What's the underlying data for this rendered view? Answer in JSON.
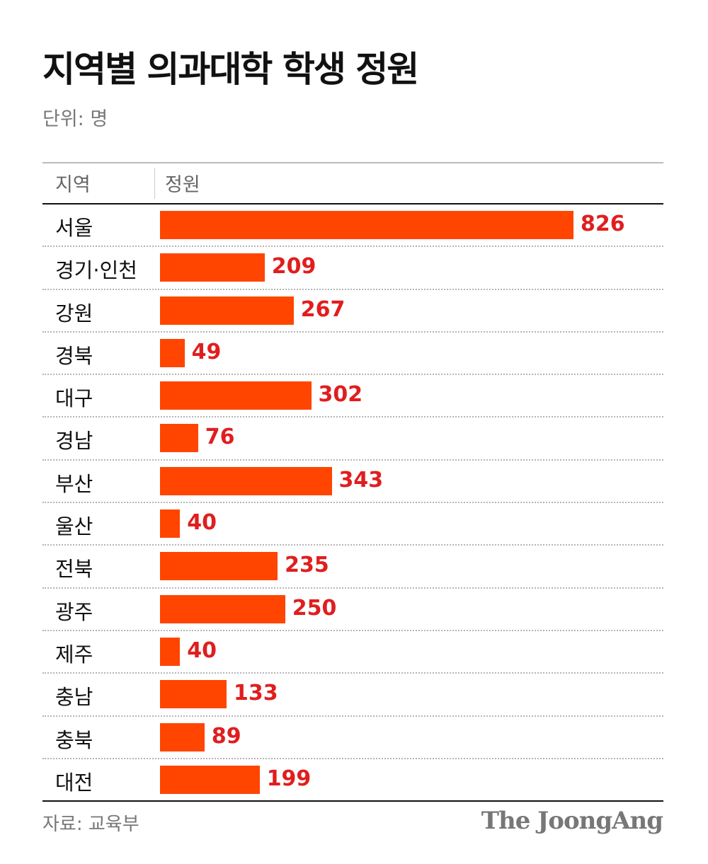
{
  "title": "지역별 의과대학 학생 정원",
  "unit": "단위: 명",
  "header": {
    "region": "지역",
    "value": "정원"
  },
  "colors": {
    "bar": "#ff4500",
    "value_label": "#e01e1e"
  },
  "chart_data": {
    "type": "bar",
    "orientation": "horizontal",
    "title": "지역별 의과대학 학생 정원",
    "categories": [
      "서울",
      "경기·인천",
      "강원",
      "경북",
      "대구",
      "경남",
      "부산",
      "울산",
      "전북",
      "광주",
      "제주",
      "충남",
      "충북",
      "대전"
    ],
    "values": [
      826,
      209,
      267,
      49,
      302,
      76,
      343,
      40,
      235,
      250,
      40,
      133,
      89,
      199
    ],
    "xlim": [
      0,
      826
    ]
  },
  "source": "자료: 교육부",
  "brand": "The JoongAng"
}
